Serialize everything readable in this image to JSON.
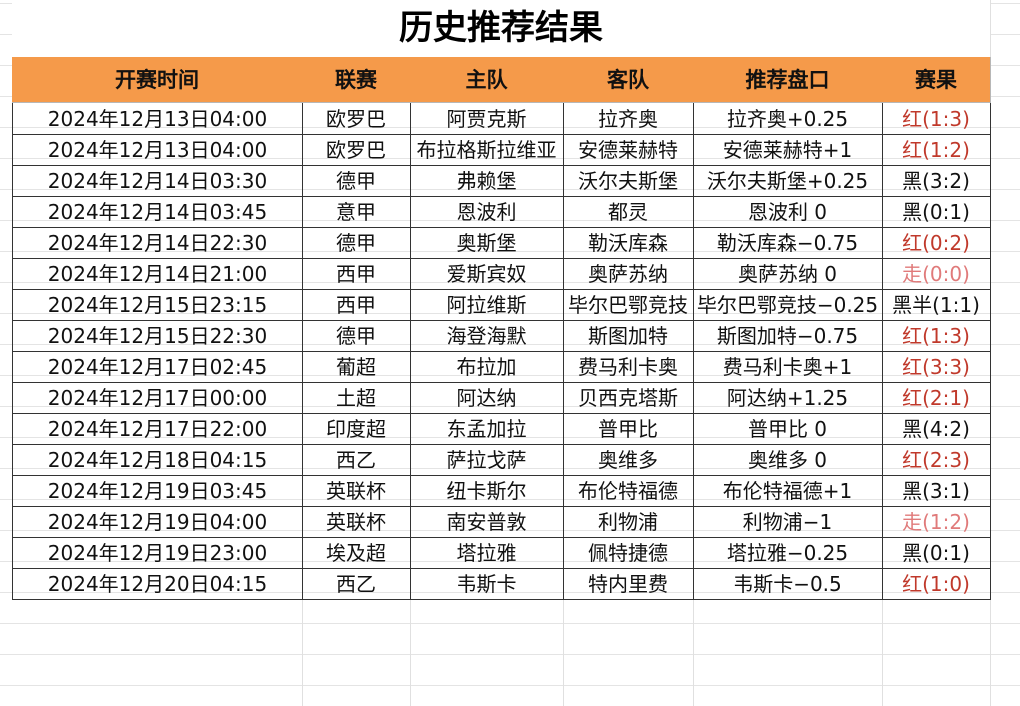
{
  "title": "历史推荐结果",
  "table": {
    "headers": [
      "开赛时间",
      "联赛",
      "主队",
      "客队",
      "推荐盘口",
      "赛果"
    ],
    "rows": [
      [
        "2024年12月13日04:00",
        "欧罗巴",
        "阿贾克斯",
        "拉齐奥",
        "拉齐奥+0.25",
        "红(1:3)"
      ],
      [
        "2024年12月13日04:00",
        "欧罗巴",
        "布拉格斯拉维亚",
        "安德莱赫特",
        "安德莱赫特+1",
        "红(1:2)"
      ],
      [
        "2024年12月14日03:30",
        "德甲",
        "弗赖堡",
        "沃尔夫斯堡",
        "沃尔夫斯堡+0.25",
        "黑(3:2)"
      ],
      [
        "2024年12月14日03:45",
        "意甲",
        "恩波利",
        "都灵",
        "恩波利 0",
        "黑(0:1)"
      ],
      [
        "2024年12月14日22:30",
        "德甲",
        "奥斯堡",
        "勒沃库森",
        "勒沃库森−0.75",
        "红(0:2)"
      ],
      [
        "2024年12月14日21:00",
        "西甲",
        "爱斯宾奴",
        "奥萨苏纳",
        "奥萨苏纳 0",
        "走(0:0)"
      ],
      [
        "2024年12月15日23:15",
        "西甲",
        "阿拉维斯",
        "毕尔巴鄂竞技",
        "毕尔巴鄂竞技−0.25",
        "黑半(1:1)"
      ],
      [
        "2024年12月15日22:30",
        "德甲",
        "海登海默",
        "斯图加特",
        "斯图加特−0.75",
        "红(1:3)"
      ],
      [
        "2024年12月17日02:45",
        "葡超",
        "布拉加",
        "费马利卡奥",
        "费马利卡奥+1",
        "红(3:3)"
      ],
      [
        "2024年12月17日00:00",
        "土超",
        "阿达纳",
        "贝西克塔斯",
        "阿达纳+1.25",
        "红(2:1)"
      ],
      [
        "2024年12月17日22:00",
        "印度超",
        "东孟加拉",
        "普甲比",
        "普甲比 0",
        "黑(4:2)"
      ],
      [
        "2024年12月18日04:15",
        "西乙",
        "萨拉戈萨",
        "奥维多",
        "奥维多 0",
        "红(2:3)"
      ],
      [
        "2024年12月19日03:45",
        "英联杯",
        "纽卡斯尔",
        "布伦特福德",
        "布伦特福德+1",
        "黑(3:1)"
      ],
      [
        "2024年12月19日04:00",
        "英联杯",
        "南安普敦",
        "利物浦",
        "利物浦−1",
        "走(1:2)"
      ],
      [
        "2024年12月19日23:00",
        "埃及超",
        "塔拉雅",
        "佩特捷德",
        "塔拉雅−0.25",
        "黑(0:1)"
      ],
      [
        "2024年12月20日04:15",
        "西乙",
        "韦斯卡",
        "特内里费",
        "韦斯卡−0.5",
        "红(1:0)"
      ]
    ],
    "result_colors": [
      "#c0392b",
      "#c0392b",
      "#111111",
      "#111111",
      "#c0392b",
      "#e07a7a",
      "#111111",
      "#c0392b",
      "#c0392b",
      "#c0392b",
      "#111111",
      "#c0392b",
      "#111111",
      "#e07a7a",
      "#111111",
      "#c0392b"
    ],
    "header_color": "#f59a4a"
  }
}
